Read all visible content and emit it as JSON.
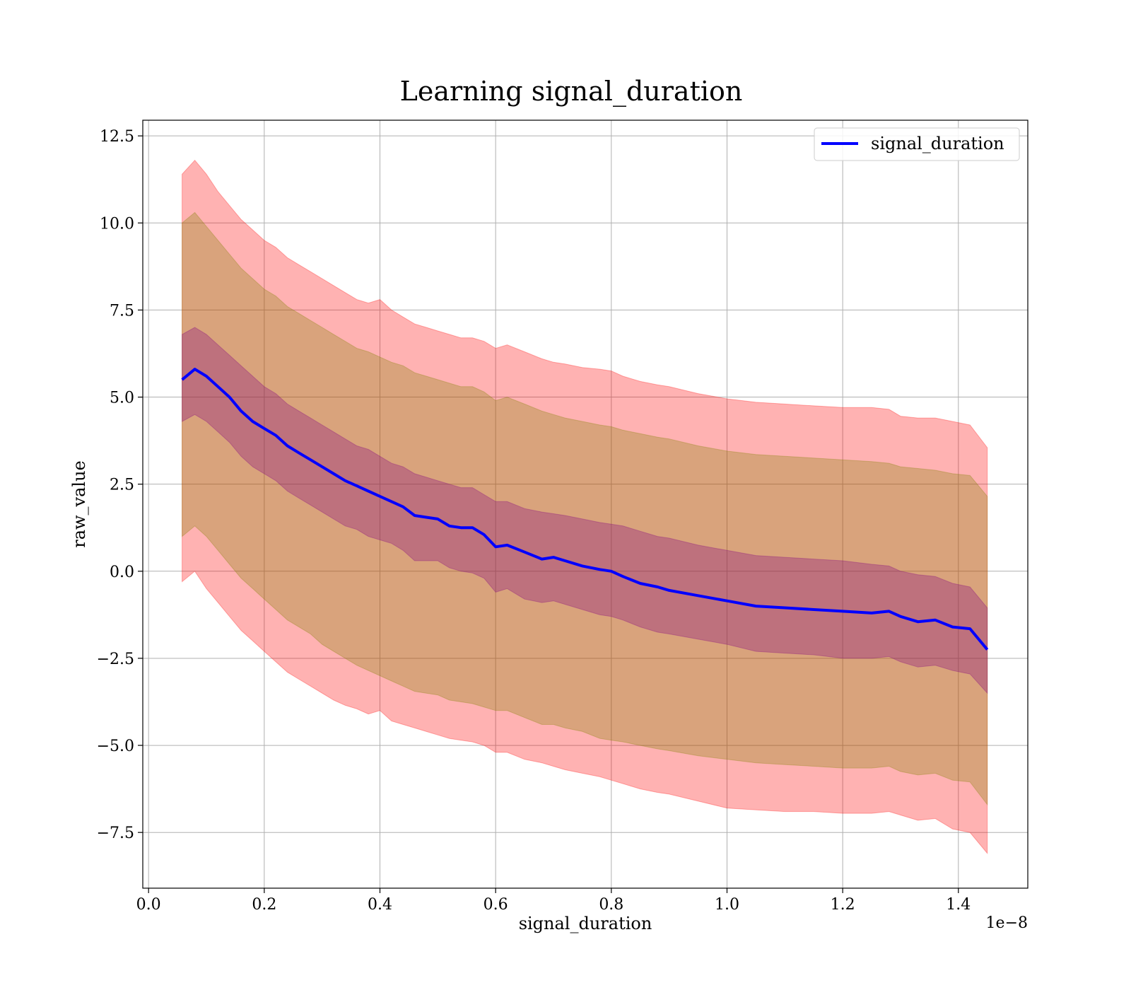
{
  "chart_data": {
    "type": "line",
    "title": "Learning signal_duration",
    "xlabel": "signal_duration",
    "ylabel": "raw_value",
    "x_offset_text": "1e−8",
    "xlim": [
      -0.01,
      1.52
    ],
    "ylim": [
      -9.1,
      12.95
    ],
    "grid": true,
    "legend_position": "top-right",
    "x_ticks": [
      {
        "value": 0.0,
        "label": "0.0"
      },
      {
        "value": 0.2,
        "label": "0.2"
      },
      {
        "value": 0.4,
        "label": "0.4"
      },
      {
        "value": 0.6,
        "label": "0.6"
      },
      {
        "value": 0.8,
        "label": "0.8"
      },
      {
        "value": 1.0,
        "label": "1.0"
      },
      {
        "value": 1.2,
        "label": "1.2"
      },
      {
        "value": 1.4,
        "label": "1.4"
      }
    ],
    "y_ticks": [
      {
        "value": 12.5,
        "label": "12.5"
      },
      {
        "value": 10.0,
        "label": "10.0"
      },
      {
        "value": 7.5,
        "label": "7.5"
      },
      {
        "value": 5.0,
        "label": "5.0"
      },
      {
        "value": 2.5,
        "label": "2.5"
      },
      {
        "value": 0.0,
        "label": "0.0"
      },
      {
        "value": -2.5,
        "label": "−2.5"
      },
      {
        "value": -5.0,
        "label": "−5.0"
      },
      {
        "value": -7.5,
        "label": "−7.5"
      }
    ],
    "series": [
      {
        "name": "signal_duration",
        "color": "#0000ff",
        "x": [
          0.058,
          0.08,
          0.1,
          0.12,
          0.14,
          0.16,
          0.18,
          0.2,
          0.22,
          0.24,
          0.26,
          0.28,
          0.3,
          0.32,
          0.34,
          0.36,
          0.38,
          0.4,
          0.42,
          0.44,
          0.46,
          0.48,
          0.5,
          0.52,
          0.54,
          0.56,
          0.58,
          0.6,
          0.62,
          0.65,
          0.68,
          0.7,
          0.72,
          0.75,
          0.78,
          0.8,
          0.82,
          0.85,
          0.88,
          0.9,
          0.95,
          1.0,
          1.05,
          1.1,
          1.15,
          1.2,
          1.25,
          1.28,
          1.3,
          1.33,
          1.36,
          1.39,
          1.42,
          1.45
        ],
        "mean": [
          5.5,
          5.8,
          5.6,
          5.3,
          5.0,
          4.6,
          4.3,
          4.1,
          3.9,
          3.6,
          3.4,
          3.2,
          3.0,
          2.8,
          2.6,
          2.45,
          2.3,
          2.15,
          2.0,
          1.85,
          1.6,
          1.55,
          1.5,
          1.3,
          1.25,
          1.25,
          1.05,
          0.7,
          0.75,
          0.55,
          0.35,
          0.4,
          0.3,
          0.15,
          0.05,
          0.0,
          -0.15,
          -0.35,
          -0.45,
          -0.55,
          -0.7,
          -0.85,
          -1.0,
          -1.05,
          -1.1,
          -1.15,
          -1.2,
          -1.15,
          -1.3,
          -1.45,
          -1.4,
          -1.6,
          -1.65,
          -2.25
        ],
        "inner_upper": [
          6.8,
          7.0,
          6.8,
          6.5,
          6.2,
          5.9,
          5.6,
          5.3,
          5.1,
          4.8,
          4.6,
          4.4,
          4.2,
          4.0,
          3.8,
          3.6,
          3.5,
          3.3,
          3.1,
          3.0,
          2.8,
          2.7,
          2.6,
          2.5,
          2.4,
          2.4,
          2.2,
          2.0,
          2.0,
          1.8,
          1.7,
          1.65,
          1.6,
          1.5,
          1.4,
          1.35,
          1.3,
          1.15,
          1.0,
          0.95,
          0.75,
          0.6,
          0.45,
          0.4,
          0.35,
          0.3,
          0.2,
          0.15,
          0.0,
          -0.1,
          -0.15,
          -0.35,
          -0.45,
          -1.05
        ],
        "inner_lower": [
          4.3,
          4.5,
          4.3,
          4.0,
          3.7,
          3.3,
          3.0,
          2.8,
          2.6,
          2.3,
          2.1,
          1.9,
          1.7,
          1.5,
          1.3,
          1.2,
          1.0,
          0.9,
          0.8,
          0.6,
          0.3,
          0.3,
          0.3,
          0.1,
          0.0,
          -0.05,
          -0.2,
          -0.6,
          -0.5,
          -0.8,
          -0.9,
          -0.85,
          -0.95,
          -1.1,
          -1.25,
          -1.3,
          -1.4,
          -1.6,
          -1.75,
          -1.8,
          -1.95,
          -2.1,
          -2.3,
          -2.35,
          -2.4,
          -2.5,
          -2.5,
          -2.45,
          -2.6,
          -2.75,
          -2.7,
          -2.85,
          -2.95,
          -3.5
        ],
        "mid_upper": [
          10.0,
          10.3,
          9.9,
          9.5,
          9.1,
          8.7,
          8.4,
          8.1,
          7.9,
          7.6,
          7.4,
          7.2,
          7.0,
          6.8,
          6.6,
          6.4,
          6.3,
          6.15,
          6.0,
          5.9,
          5.7,
          5.6,
          5.5,
          5.4,
          5.3,
          5.3,
          5.15,
          4.9,
          5.0,
          4.8,
          4.6,
          4.5,
          4.4,
          4.3,
          4.2,
          4.15,
          4.05,
          3.95,
          3.85,
          3.8,
          3.6,
          3.45,
          3.35,
          3.3,
          3.25,
          3.2,
          3.15,
          3.1,
          3.0,
          2.95,
          2.9,
          2.8,
          2.75,
          2.15
        ],
        "mid_lower": [
          1.0,
          1.3,
          1.0,
          0.6,
          0.2,
          -0.2,
          -0.5,
          -0.8,
          -1.1,
          -1.4,
          -1.6,
          -1.8,
          -2.1,
          -2.3,
          -2.5,
          -2.7,
          -2.85,
          -3.0,
          -3.15,
          -3.3,
          -3.45,
          -3.5,
          -3.55,
          -3.7,
          -3.75,
          -3.8,
          -3.9,
          -4.0,
          -4.0,
          -4.2,
          -4.4,
          -4.4,
          -4.5,
          -4.6,
          -4.8,
          -4.85,
          -4.9,
          -5.0,
          -5.1,
          -5.15,
          -5.3,
          -5.4,
          -5.5,
          -5.55,
          -5.6,
          -5.65,
          -5.65,
          -5.6,
          -5.75,
          -5.85,
          -5.8,
          -6.0,
          -6.05,
          -6.7
        ],
        "outer_upper": [
          11.4,
          11.8,
          11.4,
          10.9,
          10.5,
          10.1,
          9.8,
          9.5,
          9.3,
          9.0,
          8.8,
          8.6,
          8.4,
          8.2,
          8.0,
          7.8,
          7.7,
          7.8,
          7.5,
          7.3,
          7.1,
          7.0,
          6.9,
          6.8,
          6.7,
          6.7,
          6.6,
          6.4,
          6.5,
          6.3,
          6.1,
          6.0,
          5.95,
          5.85,
          5.8,
          5.75,
          5.6,
          5.45,
          5.35,
          5.3,
          5.1,
          4.95,
          4.85,
          4.8,
          4.75,
          4.7,
          4.7,
          4.65,
          4.45,
          4.4,
          4.4,
          4.3,
          4.2,
          3.55
        ],
        "outer_lower": [
          -0.3,
          0.0,
          -0.5,
          -0.9,
          -1.3,
          -1.7,
          -2.0,
          -2.3,
          -2.6,
          -2.9,
          -3.1,
          -3.3,
          -3.5,
          -3.7,
          -3.85,
          -3.95,
          -4.1,
          -4.0,
          -4.3,
          -4.4,
          -4.5,
          -4.6,
          -4.7,
          -4.8,
          -4.85,
          -4.9,
          -5.0,
          -5.2,
          -5.2,
          -5.4,
          -5.5,
          -5.6,
          -5.7,
          -5.8,
          -5.9,
          -6.0,
          -6.1,
          -6.25,
          -6.35,
          -6.4,
          -6.6,
          -6.8,
          -6.85,
          -6.9,
          -6.9,
          -6.95,
          -6.95,
          -6.9,
          -7.0,
          -7.15,
          -7.1,
          -7.4,
          -7.5,
          -8.1
        ]
      }
    ],
    "colors": {
      "line": "#0000ff",
      "outer_band": "#ff0000",
      "mid_band": "#808000",
      "inner_band": "#800080",
      "grid": "#b0b0b0"
    }
  }
}
